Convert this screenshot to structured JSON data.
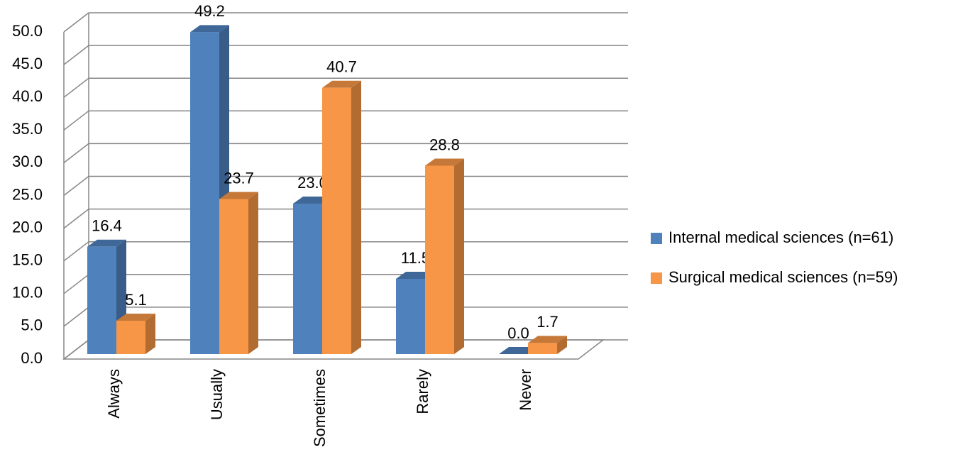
{
  "chart_data": {
    "type": "bar3d",
    "categories": [
      "Always",
      "Usually",
      "Sometimes",
      "Rarely",
      "Never"
    ],
    "series": [
      {
        "name": "Internal medical sciences (n=61)",
        "color": "#4f81bd",
        "values": [
          16.4,
          49.2,
          23.0,
          11.5,
          0.0
        ],
        "value_labels": [
          "16.4",
          "49.2",
          "23.0",
          "11.5",
          "0.0"
        ]
      },
      {
        "name": "Surgical medical sciences (n=59)",
        "color": "#f79646",
        "values": [
          5.1,
          23.7,
          40.7,
          28.8,
          1.7
        ],
        "value_labels": [
          "5.1",
          "23.7",
          "40.7",
          "28.8",
          "1.7"
        ]
      }
    ],
    "ylim": [
      0,
      50
    ],
    "yticks": [
      {
        "value": 0,
        "label": "0.0"
      },
      {
        "value": 5,
        "label": "5.0"
      },
      {
        "value": 10,
        "label": "10.0"
      },
      {
        "value": 15,
        "label": "15.0"
      },
      {
        "value": 20,
        "label": "20.0"
      },
      {
        "value": 25,
        "label": "25.0"
      },
      {
        "value": 30,
        "label": "30.0"
      },
      {
        "value": 35,
        "label": "35.0"
      },
      {
        "value": 40,
        "label": "40.0"
      },
      {
        "value": 45,
        "label": "45.0"
      },
      {
        "value": 50,
        "label": "50.0"
      }
    ],
    "grid": true
  }
}
